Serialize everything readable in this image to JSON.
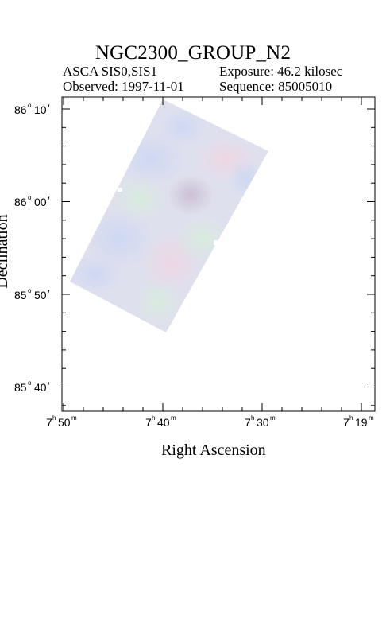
{
  "header": {
    "title": "NGC2300_GROUP_N2",
    "instrument": "ASCA SIS0,SIS1",
    "exposure": "Exposure: 46.2 kilosec",
    "observed": "Observed: 1997-11-01",
    "sequence": "Sequence: 85005010"
  },
  "axes": {
    "xlabel": "Right Ascension",
    "ylabel": "Declination",
    "x_ticks": [
      {
        "h": "7",
        "m": "50"
      },
      {
        "h": "7",
        "m": "40"
      },
      {
        "h": "7",
        "m": "30"
      },
      {
        "h": "7",
        "m": "19"
      }
    ],
    "y_ticks": [
      {
        "d": "86",
        "m": "10"
      },
      {
        "d": "86",
        "m": "00"
      },
      {
        "d": "85",
        "m": "50"
      },
      {
        "d": "85",
        "m": "40"
      }
    ]
  },
  "colors": {
    "frame": "#000000",
    "image_base": "#dfe0ee",
    "image_blue": "#d3dbf2",
    "image_pink": "#ead8e3",
    "image_green": "#dcebdf",
    "image_mauve": "#d4c8d8"
  }
}
